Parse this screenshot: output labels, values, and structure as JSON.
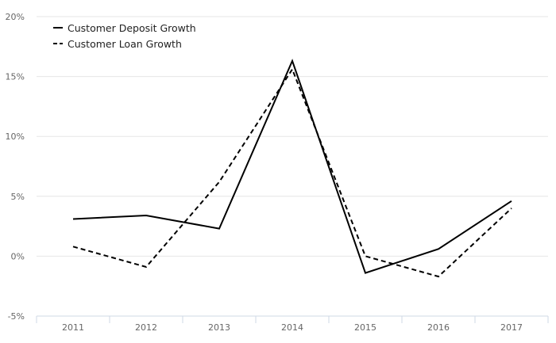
{
  "chart_data": {
    "type": "line",
    "categories": [
      "2011",
      "2012",
      "2013",
      "2014",
      "2015",
      "2016",
      "2017"
    ],
    "series": [
      {
        "name": "Customer Deposit Growth",
        "values": [
          3.1,
          3.4,
          2.3,
          16.3,
          -1.4,
          0.6,
          4.6
        ],
        "color": "#000000",
        "dash": "solid"
      },
      {
        "name": "Customer Loan Growth",
        "values": [
          0.8,
          -0.9,
          6.2,
          15.6,
          0.0,
          -1.7,
          4.0
        ],
        "color": "#000000",
        "dash": "dashed"
      }
    ],
    "ylim": [
      -5,
      20
    ],
    "yticks": [
      "20%",
      "15%",
      "10%",
      "5%",
      "0%",
      "-5%"
    ],
    "ytick_values": [
      20,
      15,
      10,
      5,
      0,
      -5
    ],
    "grid": true,
    "legend_position": "top-left",
    "title": "",
    "xlabel": "",
    "ylabel": ""
  }
}
